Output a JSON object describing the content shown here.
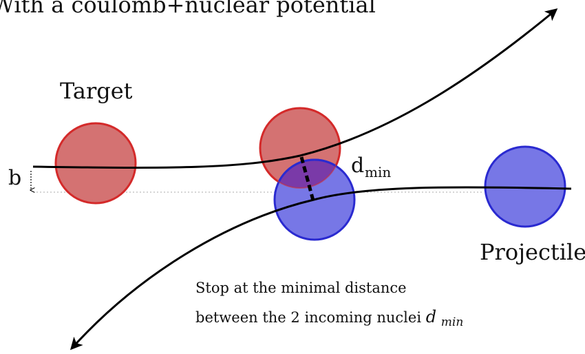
{
  "title_partial": "With a coulomb+nuclear potential",
  "labels": {
    "target": "Target",
    "projectile": "Projectile",
    "impact_parameter": "b",
    "dmin_main": "d",
    "dmin_sub": "min",
    "caption_line1": "Stop at the minimal distance",
    "caption_line2_text": "between the 2 incoming nuclei ",
    "caption_line2_italic_main": "d",
    "caption_line2_italic_sub": "min"
  },
  "colors": {
    "target_fill": "#d47272",
    "target_stroke": "#d42a2a",
    "projectile_fill": "#7777e6",
    "projectile_stroke": "#2a2ad0",
    "overlap_fill": "#7a3aa8",
    "trajectory": "#000000",
    "dotted_guide": "#aaaaaa"
  }
}
